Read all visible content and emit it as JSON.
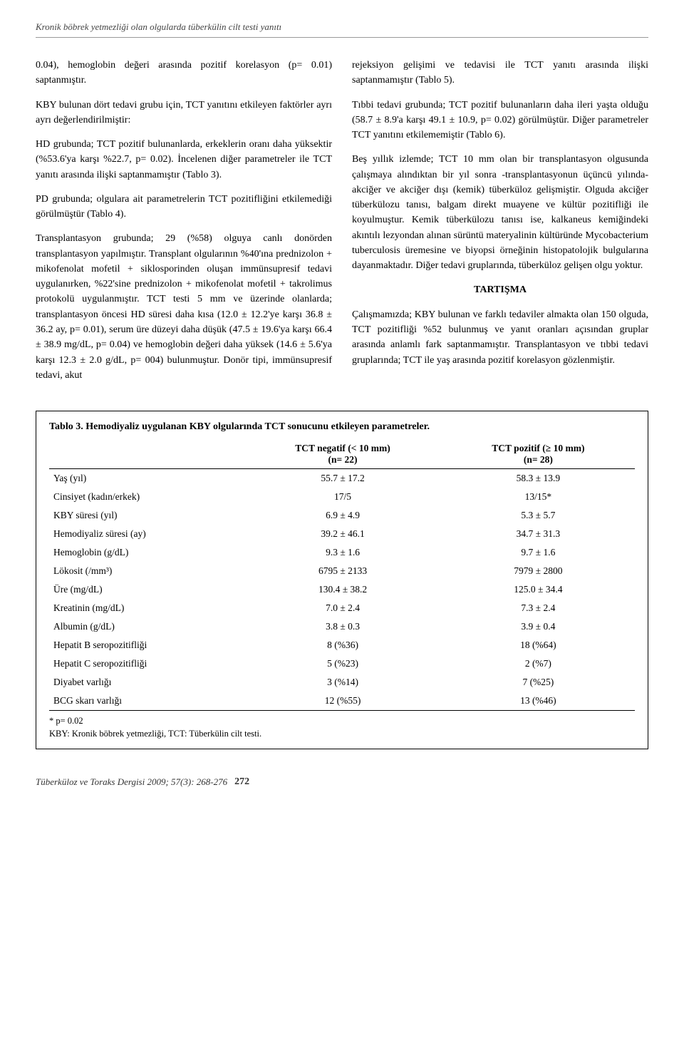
{
  "running_title": "Kronik böbrek yetmezliği olan olgularda tüberkülin cilt testi yanıtı",
  "left_col": {
    "p1": "0.04), hemoglobin değeri arasında pozitif korelasyon (p= 0.01) saptanmıştır.",
    "p2": "KBY bulunan dört tedavi grubu için, TCT yanıtını etkileyen faktörler ayrı ayrı değerlendirilmiştir:",
    "p3": "HD grubunda; TCT pozitif bulunanlarda, erkeklerin oranı daha yüksektir (%53.6'ya karşı %22.7, p= 0.02). İncelenen diğer parametreler ile TCT yanıtı arasında ilişki saptanmamıştır (Tablo 3).",
    "p4": "PD grubunda; olgulara ait parametrelerin TCT pozitifliğini etkilemediği görülmüştür (Tablo 4).",
    "p5": "Transplantasyon grubunda; 29 (%58) olguya canlı donörden transplantasyon yapılmıştır. Transplant olgularının %40'ına prednizolon + mikofenolat mofetil + siklosporinden oluşan immünsupresif tedavi uygulanırken, %22'sine prednizolon + mikofenolat mofetil + takrolimus protokolü uygulanmıştır. TCT testi 5 mm ve üzerinde olanlarda; transplantasyon öncesi HD süresi daha kısa (12.0 ± 12.2'ye karşı 36.8 ± 36.2 ay, p= 0.01), serum üre düzeyi daha düşük (47.5 ± 19.6'ya karşı 66.4 ± 38.9 mg/dL, p= 0.04) ve hemoglobin değeri daha yüksek (14.6 ± 5.6'ya karşı 12.3 ± 2.0 g/dL, p= 004) bulunmuştur. Donör tipi, immünsupresif tedavi, akut"
  },
  "right_col": {
    "p1": "rejeksiyon gelişimi ve tedavisi ile TCT yanıtı arasında ilişki saptanmamıştır (Tablo 5).",
    "p2": "Tıbbi tedavi grubunda; TCT pozitif bulunanların daha ileri yaşta olduğu (58.7 ± 8.9'a karşı 49.1 ± 10.9, p= 0.02) görülmüştür. Diğer parametreler TCT yanıtını etkilememiştir (Tablo 6).",
    "p3": "Beş yıllık izlemde; TCT 10 mm olan bir transplantasyon olgusunda çalışmaya alındıktan bir yıl sonra -transplantasyonun üçüncü yılında- akciğer ve akciğer dışı (kemik) tüberküloz gelişmiştir. Olguda akciğer tüberkülozu tanısı, balgam direkt muayene ve kültür pozitifliği ile koyulmuştur. Kemik tüberkülozu tanısı ise, kalkaneus kemiğindeki akıntılı lezyondan alınan sürüntü materyalinin kültüründe Mycobacterium tuberculosis üremesine ve biyopsi örneğinin histopatolojik bulgularına dayanmaktadır. Diğer tedavi gruplarında, tüberküloz gelişen olgu yoktur.",
    "heading": "TARTIŞMA",
    "p4": "Çalışmamızda; KBY bulunan ve farklı tedaviler almakta olan 150 olguda, TCT pozitifliği %52 bulunmuş ve yanıt oranları açısından gruplar arasında anlamlı fark saptanmamıştır. Transplantasyon ve tıbbi tedavi gruplarında; TCT ile yaş arasında pozitif korelasyon gözlenmiştir."
  },
  "table": {
    "caption": "Tablo 3. Hemodiyaliz uygulanan KBY olgularında TCT sonucunu etkileyen parametreler.",
    "col_neg_header1": "TCT negatif (< 10 mm)",
    "col_neg_header2": "(n= 22)",
    "col_pos_header1": "TCT pozitif (≥ 10 mm)",
    "col_pos_header2": "(n= 28)",
    "rows": [
      {
        "label": "Yaş (yıl)",
        "neg": "55.7 ± 17.2",
        "pos": "58.3 ± 13.9"
      },
      {
        "label": "Cinsiyet (kadın/erkek)",
        "neg": "17/5",
        "pos": "13/15*"
      },
      {
        "label": "KBY süresi (yıl)",
        "neg": "6.9 ± 4.9",
        "pos": "5.3 ± 5.7"
      },
      {
        "label": "Hemodiyaliz süresi (ay)",
        "neg": "39.2 ± 46.1",
        "pos": "34.7 ± 31.3"
      },
      {
        "label": "Hemoglobin (g/dL)",
        "neg": "9.3 ± 1.6",
        "pos": "9.7 ± 1.6"
      },
      {
        "label": "Lökosit (/mm³)",
        "neg": "6795 ± 2133",
        "pos": "7979 ± 2800"
      },
      {
        "label": "Üre (mg/dL)",
        "neg": "130.4 ± 38.2",
        "pos": "125.0 ± 34.4"
      },
      {
        "label": "Kreatinin (mg/dL)",
        "neg": "7.0 ± 2.4",
        "pos": "7.3 ± 2.4"
      },
      {
        "label": "Albumin (g/dL)",
        "neg": "3.8 ± 0.3",
        "pos": "3.9 ± 0.4"
      },
      {
        "label": "Hepatit B seropozitifliği",
        "neg": "8 (%36)",
        "pos": "18 (%64)"
      },
      {
        "label": "Hepatit C seropozitifliği",
        "neg": "5 (%23)",
        "pos": "2 (%7)"
      },
      {
        "label": "Diyabet varlığı",
        "neg": "3 (%14)",
        "pos": "7 (%25)"
      },
      {
        "label": "BCG skarı varlığı",
        "neg": "12 (%55)",
        "pos": "13 (%46)"
      }
    ],
    "footnote1": "* p= 0.02",
    "footnote2": "KBY: Kronik böbrek yetmezliği, TCT: Tüberkülin cilt testi."
  },
  "footer": {
    "journal": "Tüberküloz ve Toraks Dergisi 2009; 57(3): 268-276",
    "page": "272"
  }
}
